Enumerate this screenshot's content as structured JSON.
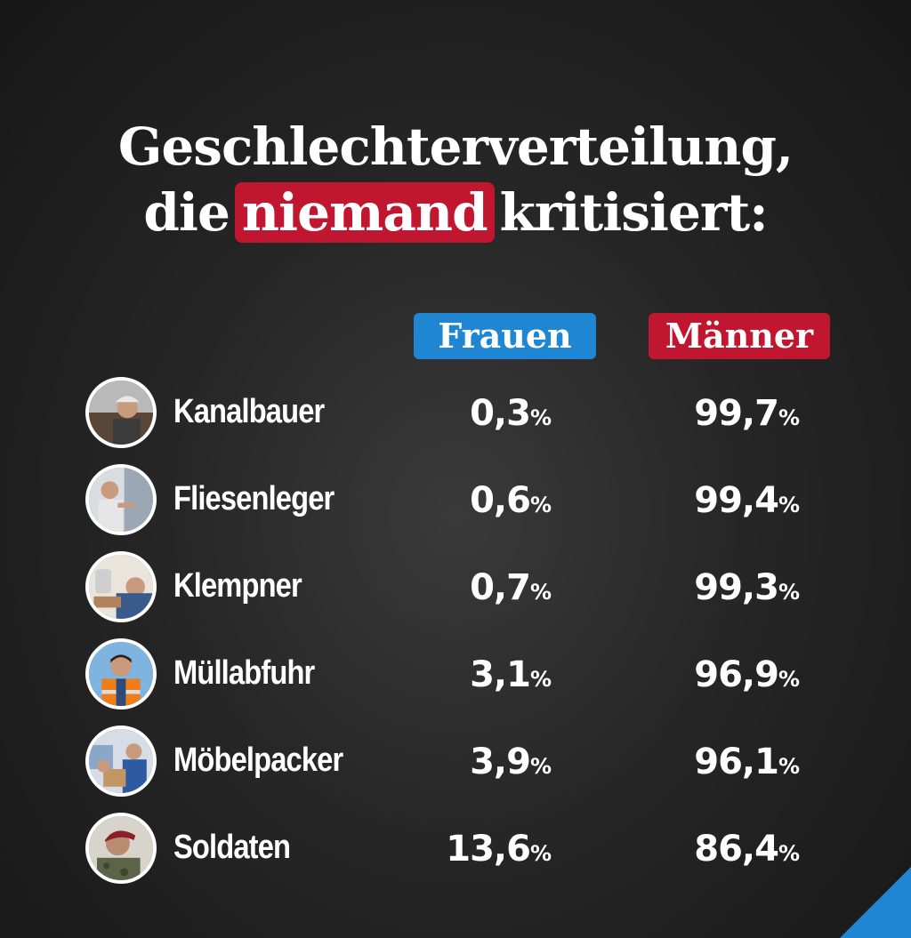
{
  "title": {
    "line1": "Geschlechterverteilung,",
    "line2_before": "die",
    "line2_highlight": "niemand",
    "line2_after": "kritisiert:"
  },
  "headers": {
    "frauen": "Frauen",
    "maenner": "Männer"
  },
  "colors": {
    "blue": "#1f86d3",
    "red": "#c0162f",
    "background": "#262626"
  },
  "rows": [
    {
      "job": "Kanalbauer",
      "frauen": "0,3",
      "maenner": "99,7",
      "photo": "worker-helmet-photo"
    },
    {
      "job": "Fliesenleger",
      "frauen": "0,6",
      "maenner": "99,4",
      "photo": "tiler-photo"
    },
    {
      "job": "Klempner",
      "frauen": "0,7",
      "maenner": "99,3",
      "photo": "plumber-photo"
    },
    {
      "job": "Müllabfuhr",
      "frauen": "3,1",
      "maenner": "96,9",
      "photo": "garbage-collector-photo"
    },
    {
      "job": "Möbelpacker",
      "frauen": "3,9",
      "maenner": "96,1",
      "photo": "mover-photo"
    },
    {
      "job": "Soldaten",
      "frauen": "13,6",
      "maenner": "86,4",
      "photo": "soldier-photo"
    }
  ],
  "percent_sign": "%"
}
